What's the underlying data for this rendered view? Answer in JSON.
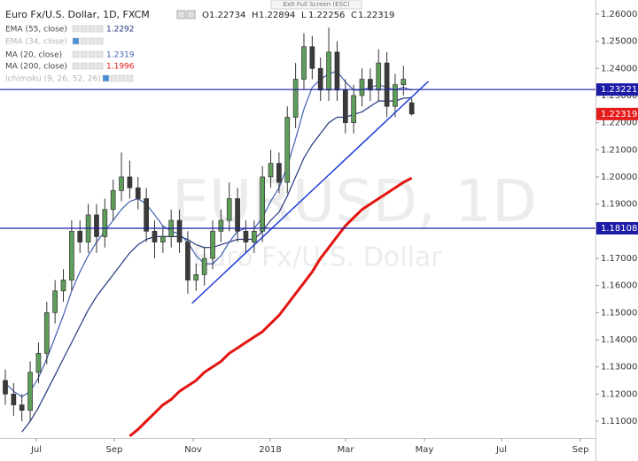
{
  "exit_fullscreen": "Exit Full Screen (ESC)",
  "chart_data": {
    "type": "candlestick",
    "title": "Euro Fx/U.S. Dollar, 1D, FXCM",
    "ohlc": [
      {
        "label": "O",
        "value": 1.22734
      },
      {
        "label": "H",
        "value": 1.22894
      },
      {
        "label": "L",
        "value": 1.22256
      },
      {
        "label": "C",
        "value": 1.22319
      }
    ],
    "watermark": [
      "EURUSD, 1D",
      "Euro Fx/U.S. Dollar"
    ],
    "x": [
      0,
      1,
      2,
      3,
      4,
      5,
      6,
      7,
      8,
      9,
      10,
      11,
      12,
      13,
      14,
      15,
      16,
      17,
      18,
      19,
      20,
      21,
      22,
      23,
      24,
      25,
      26,
      27,
      28,
      29,
      30,
      31,
      32,
      33,
      34,
      35,
      36,
      37,
      38,
      39,
      40,
      41,
      42,
      43,
      44,
      45,
      46,
      47,
      48,
      49
    ],
    "open": [
      1.125,
      1.12,
      1.116,
      1.114,
      1.128,
      1.135,
      1.15,
      1.158,
      1.162,
      1.18,
      1.176,
      1.186,
      1.178,
      1.188,
      1.195,
      1.2,
      1.196,
      1.192,
      1.18,
      1.176,
      1.178,
      1.184,
      1.176,
      1.162,
      1.164,
      1.17,
      1.18,
      1.184,
      1.192,
      1.18,
      1.176,
      1.18,
      1.2,
      1.205,
      1.198,
      1.222,
      1.236,
      1.248,
      1.24,
      1.232,
      1.246,
      1.232,
      1.22,
      1.23,
      1.236,
      1.232,
      1.242,
      1.226,
      1.234,
      1.22734
    ],
    "high": [
      1.129,
      1.124,
      1.12,
      1.132,
      1.139,
      1.154,
      1.162,
      1.166,
      1.184,
      1.184,
      1.19,
      1.19,
      1.192,
      1.199,
      1.209,
      1.206,
      1.2,
      1.196,
      1.184,
      1.182,
      1.188,
      1.188,
      1.18,
      1.168,
      1.174,
      1.184,
      1.188,
      1.198,
      1.196,
      1.184,
      1.184,
      1.204,
      1.21,
      1.209,
      1.226,
      1.242,
      1.253,
      1.252,
      1.244,
      1.255,
      1.25,
      1.236,
      1.234,
      1.24,
      1.24,
      1.247,
      1.246,
      1.238,
      1.241,
      1.22894
    ],
    "low": [
      1.116,
      1.112,
      1.11,
      1.11,
      1.124,
      1.131,
      1.146,
      1.154,
      1.158,
      1.172,
      1.172,
      1.172,
      1.174,
      1.184,
      1.191,
      1.192,
      1.188,
      1.176,
      1.17,
      1.172,
      1.174,
      1.172,
      1.157,
      1.158,
      1.16,
      1.166,
      1.176,
      1.18,
      1.176,
      1.172,
      1.172,
      1.176,
      1.196,
      1.194,
      1.194,
      1.218,
      1.232,
      1.236,
      1.228,
      1.228,
      1.228,
      1.216,
      1.216,
      1.226,
      1.228,
      1.228,
      1.222,
      1.222,
      1.23,
      1.22256
    ],
    "close": [
      1.12,
      1.116,
      1.114,
      1.128,
      1.135,
      1.15,
      1.158,
      1.162,
      1.18,
      1.176,
      1.186,
      1.178,
      1.188,
      1.195,
      1.2,
      1.196,
      1.192,
      1.18,
      1.176,
      1.178,
      1.184,
      1.176,
      1.162,
      1.164,
      1.17,
      1.18,
      1.184,
      1.192,
      1.18,
      1.176,
      1.18,
      1.2,
      1.205,
      1.198,
      1.222,
      1.236,
      1.248,
      1.24,
      1.232,
      1.246,
      1.232,
      1.22,
      1.23,
      1.236,
      1.232,
      1.242,
      1.226,
      1.234,
      1.236,
      1.22319
    ],
    "up_color": "#5e9e5a",
    "down_color": "#3a3a3a",
    "series": [
      {
        "name": "EMA (55, close)",
        "color": "#24397f",
        "values": [
          null,
          null,
          1.106,
          1.11,
          1.115,
          1.121,
          1.127,
          1.133,
          1.139,
          1.145,
          1.151,
          1.156,
          1.16,
          1.164,
          1.168,
          1.172,
          1.175,
          1.177,
          1.178,
          1.178,
          1.178,
          1.178,
          1.177,
          1.175,
          1.174,
          1.174,
          1.175,
          1.176,
          1.177,
          1.177,
          1.177,
          1.18,
          1.184,
          1.187,
          1.193,
          1.2,
          1.207,
          1.212,
          1.216,
          1.22,
          1.222,
          1.222,
          1.223,
          1.224,
          1.226,
          1.228,
          1.228,
          1.228,
          1.229,
          1.2292
        ]
      },
      {
        "name": "EMA (34, close)",
        "visible": false
      },
      {
        "name": "MA (20, close)",
        "color": "#3f5fb0",
        "values": [
          1.124,
          1.121,
          1.119,
          1.121,
          1.126,
          1.133,
          1.141,
          1.149,
          1.158,
          1.165,
          1.171,
          1.176,
          1.18,
          1.184,
          1.188,
          1.191,
          1.192,
          1.19,
          1.186,
          1.182,
          1.18,
          1.179,
          1.176,
          1.171,
          1.168,
          1.168,
          1.171,
          1.176,
          1.18,
          1.181,
          1.181,
          1.185,
          1.191,
          1.196,
          1.204,
          1.214,
          1.225,
          1.233,
          1.236,
          1.238,
          1.239,
          1.235,
          1.232,
          1.232,
          1.233,
          1.234,
          1.233,
          1.232,
          1.233,
          1.2319
        ]
      },
      {
        "name": "MA (200, close)",
        "color": "#e3140f",
        "values": [
          null,
          null,
          null,
          null,
          null,
          null,
          null,
          null,
          null,
          null,
          null,
          null,
          null,
          null,
          null,
          1.1045,
          1.107,
          1.11,
          1.113,
          1.116,
          1.118,
          1.121,
          1.123,
          1.125,
          1.128,
          1.13,
          1.132,
          1.135,
          1.137,
          1.139,
          1.141,
          1.143,
          1.146,
          1.149,
          1.153,
          1.157,
          1.161,
          1.165,
          1.17,
          1.174,
          1.178,
          1.182,
          1.185,
          1.188,
          1.19,
          1.192,
          1.194,
          1.196,
          1.198,
          1.1996
        ]
      },
      {
        "name": "Ichimoku (9, 26, 52, 26)",
        "visible": false
      }
    ],
    "hlines": [
      {
        "value": 1.23221,
        "color": "#1c1ca8"
      },
      {
        "value": 1.18108,
        "color": "#1c1ca8"
      }
    ],
    "last_price": {
      "value": 1.22319,
      "color": "#e51c1c"
    },
    "trendline": {
      "x": [
        22.5,
        51.0
      ],
      "y": [
        1.1534,
        1.2352
      ],
      "color": "#1e3cd8"
    },
    "xlim": [
      -0.64,
      71.15
    ],
    "xticks": [
      {
        "value": 3.74,
        "label": "Jul"
      },
      {
        "value": 13.14,
        "label": "Sep"
      },
      {
        "value": 22.65,
        "label": "Nov"
      },
      {
        "value": 31.94,
        "label": "2018"
      },
      {
        "value": 41.03,
        "label": "Mar"
      },
      {
        "value": 50.53,
        "label": "May"
      },
      {
        "value": 59.83,
        "label": "Jul"
      },
      {
        "value": 69.34,
        "label": "Sep"
      }
    ],
    "ylim": [
      1.1038,
      1.2652
    ],
    "yticks": [
      {
        "value": 1.26,
        "label": "1.26000"
      },
      {
        "value": 1.25,
        "label": "1.25000"
      },
      {
        "value": 1.24,
        "label": "1.24000"
      },
      {
        "value": 1.23,
        "label": "1.23000"
      },
      {
        "value": 1.22,
        "label": "1.22000"
      },
      {
        "value": 1.21,
        "label": "1.21000"
      },
      {
        "value": 1.2,
        "label": "1.20000"
      },
      {
        "value": 1.19,
        "label": "1.19000"
      },
      {
        "value": 1.18,
        "label": "1.18000"
      },
      {
        "value": 1.17,
        "label": "1.17000"
      },
      {
        "value": 1.16,
        "label": "1.16000"
      },
      {
        "value": 1.15,
        "label": "1.15000"
      },
      {
        "value": 1.14,
        "label": "1.14000"
      },
      {
        "value": 1.13,
        "label": "1.13000"
      },
      {
        "value": 1.12,
        "label": "1.12000"
      },
      {
        "value": 1.11,
        "label": "1.11000"
      }
    ]
  }
}
